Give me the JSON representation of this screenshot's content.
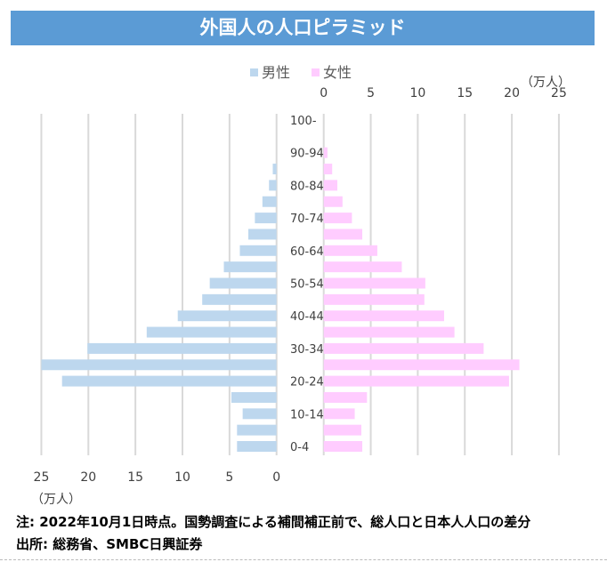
{
  "title": "外国人の人口ピラミッド",
  "chart_data": {
    "type": "bar",
    "orientation": "horizontal-pyramid",
    "title": "外国人の人口ピラミッド",
    "categories": [
      "100-",
      "95-99",
      "90-94",
      "85-89",
      "80-84",
      "75-79",
      "70-74",
      "65-69",
      "60-64",
      "55-59",
      "50-54",
      "45-49",
      "40-44",
      "35-39",
      "30-34",
      "25-29",
      "20-24",
      "15-19",
      "10-14",
      "5-9",
      "0-4"
    ],
    "visible_category_labels": [
      "100-",
      "90-94",
      "80-84",
      "70-74",
      "60-64",
      "50-54",
      "40-44",
      "30-34",
      "20-24",
      "10-14",
      "0-4"
    ],
    "series": [
      {
        "name": "男性",
        "color": "#bdd7ee",
        "axis": "bottom (reversed)",
        "values": [
          0,
          0,
          0,
          0.4,
          0.8,
          1.5,
          2.3,
          3.0,
          3.9,
          5.6,
          7.1,
          7.9,
          10.5,
          13.8,
          20.1,
          25.0,
          22.8,
          4.8,
          3.6,
          4.2,
          4.2
        ]
      },
      {
        "name": "女性",
        "color": "#ffccff",
        "axis": "top",
        "values": [
          0,
          0,
          0.4,
          0.9,
          1.45,
          2.0,
          3.0,
          4.1,
          5.7,
          8.3,
          10.8,
          10.7,
          12.8,
          13.9,
          17.0,
          20.8,
          19.7,
          4.6,
          3.3,
          4.0,
          4.1
        ]
      }
    ],
    "male_axis": {
      "ticks": [
        25,
        20,
        15,
        10,
        5,
        0
      ],
      "range": [
        0,
        25
      ],
      "unit_label": "（万人）"
    },
    "female_axis": {
      "ticks": [
        0,
        5,
        10,
        15,
        20,
        25
      ],
      "range": [
        0,
        25
      ],
      "unit_label": "（万人）"
    },
    "legend": {
      "placement": "top-center",
      "entries": [
        "男性",
        "女性"
      ]
    },
    "grid": true
  },
  "notes": {
    "note": "注: 2022年10月1日時点。国勢調査による補間補正前で、総人口と日本人人口の差分",
    "source": "出所: 総務省、SMBC日興証券"
  }
}
